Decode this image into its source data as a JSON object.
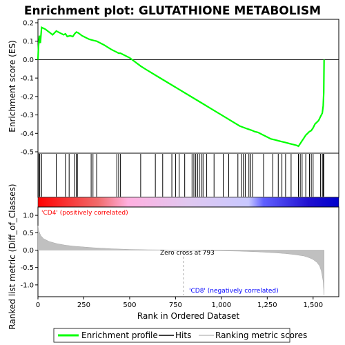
{
  "chart_data": {
    "type": "line",
    "title": "Enrichment plot: GLUTATHIONE METABOLISM",
    "top_panel": {
      "ylabel": "Enrichment score (ES)",
      "ylim": [
        -0.5,
        0.2
      ],
      "yticks": [
        "0.2",
        "0.1",
        "0.0",
        "-0.1",
        "-0.2",
        "-0.3",
        "-0.4",
        "-0.5"
      ],
      "ytick_values": [
        0.2,
        0.1,
        0.0,
        -0.1,
        -0.2,
        -0.3,
        -0.4,
        -0.5
      ],
      "series": [
        {
          "name": "Enrichment profile",
          "color": "#00ff00",
          "x": [
            0,
            3,
            8,
            13,
            20,
            40,
            60,
            80,
            100,
            120,
            140,
            150,
            160,
            175,
            190,
            200,
            210,
            220,
            240,
            260,
            280,
            300,
            320,
            360,
            400,
            430,
            440,
            450,
            500,
            560,
            600,
            650,
            700,
            750,
            800,
            850,
            900,
            950,
            1000,
            1050,
            1100,
            1140,
            1170,
            1180,
            1200,
            1230,
            1250,
            1270,
            1290,
            1310,
            1330,
            1350,
            1370,
            1390,
            1410,
            1420,
            1430,
            1440,
            1450,
            1460,
            1470,
            1480,
            1490,
            1500,
            1510,
            1520,
            1530,
            1540,
            1550,
            1555,
            1558,
            1560
          ],
          "y": [
            0.0,
            0.07,
            0.13,
            0.09,
            0.175,
            0.165,
            0.15,
            0.135,
            0.155,
            0.145,
            0.135,
            0.14,
            0.125,
            0.13,
            0.125,
            0.14,
            0.15,
            0.145,
            0.13,
            0.12,
            0.11,
            0.105,
            0.1,
            0.08,
            0.055,
            0.04,
            0.035,
            0.035,
            0.01,
            -0.035,
            -0.06,
            -0.09,
            -0.12,
            -0.15,
            -0.18,
            -0.21,
            -0.24,
            -0.27,
            -0.3,
            -0.33,
            -0.36,
            -0.375,
            -0.385,
            -0.39,
            -0.395,
            -0.41,
            -0.42,
            -0.43,
            -0.435,
            -0.44,
            -0.445,
            -0.45,
            -0.455,
            -0.46,
            -0.465,
            -0.47,
            -0.455,
            -0.44,
            -0.425,
            -0.41,
            -0.4,
            -0.39,
            -0.385,
            -0.37,
            -0.35,
            -0.34,
            -0.33,
            -0.31,
            -0.29,
            -0.25,
            -0.18,
            0.0
          ]
        }
      ]
    },
    "hits_panel": {
      "hit_positions": [
        5,
        10,
        20,
        100,
        150,
        170,
        200,
        210,
        215,
        290,
        300,
        320,
        430,
        440,
        450,
        560,
        640,
        680,
        730,
        750,
        770,
        800,
        840,
        850,
        860,
        870,
        880,
        890,
        900,
        920,
        960,
        1010,
        1040,
        1090,
        1110,
        1120,
        1130,
        1150,
        1160,
        1170,
        1230,
        1280,
        1310,
        1330,
        1350,
        1380,
        1420,
        1430,
        1440,
        1460,
        1480,
        1490,
        1500,
        1540,
        1550,
        1555,
        1558
      ]
    },
    "colorbar": {
      "gradient": [
        "#ff0000",
        "#f06b6b",
        "#ffb0e0",
        "#e0c8f0",
        "#c8c8ff",
        "#6060ff",
        "#2010d0",
        "#0000cc"
      ],
      "stops": [
        0,
        0.2,
        0.3,
        0.5,
        0.7,
        0.75,
        0.9,
        1
      ],
      "left_label": "'CD4' (positively correlated)",
      "right_label": "'CD8' (negatively correlated)",
      "left_color": "#ff0000",
      "right_color": "#0000ff"
    },
    "bottom_panel": {
      "ylabel": "Ranked list metric (Diff_of_Classes)",
      "xlabel": "Rank in Ordered Dataset",
      "ylim": [
        -1.3,
        1.2
      ],
      "yticks": [
        "1.0",
        "0.5",
        "0.0",
        "-0.5",
        "-1.0"
      ],
      "ytick_values": [
        1.0,
        0.5,
        0.0,
        -0.5,
        -1.0
      ],
      "xlim": [
        0,
        1640
      ],
      "xticks": [
        "0",
        "250",
        "500",
        "750",
        "1,000",
        "1,250",
        "1,500"
      ],
      "xtick_values": [
        0,
        250,
        500,
        750,
        1000,
        1250,
        1500
      ],
      "zero_cross_label": "Zero cross at 793",
      "zero_cross": 793,
      "metric_x": [
        0,
        5,
        15,
        30,
        60,
        100,
        150,
        200,
        300,
        400,
        500,
        600,
        700,
        793,
        900,
        1000,
        1100,
        1200,
        1300,
        1350,
        1400,
        1450,
        1480,
        1500,
        1520,
        1535,
        1545,
        1555,
        1560
      ],
      "metric_y": [
        0.7,
        0.55,
        0.42,
        0.33,
        0.25,
        0.19,
        0.14,
        0.11,
        0.07,
        0.04,
        0.02,
        0.01,
        0.005,
        0.0,
        -0.01,
        -0.02,
        -0.03,
        -0.05,
        -0.08,
        -0.1,
        -0.13,
        -0.17,
        -0.22,
        -0.27,
        -0.35,
        -0.45,
        -0.6,
        -0.9,
        -1.3
      ]
    },
    "legend": {
      "items": [
        {
          "label": "Enrichment profile",
          "color": "#00ff00"
        },
        {
          "label": "Hits",
          "color": "#000000"
        },
        {
          "label": "Ranking metric scores",
          "color": "#c0c0c0"
        }
      ]
    }
  }
}
